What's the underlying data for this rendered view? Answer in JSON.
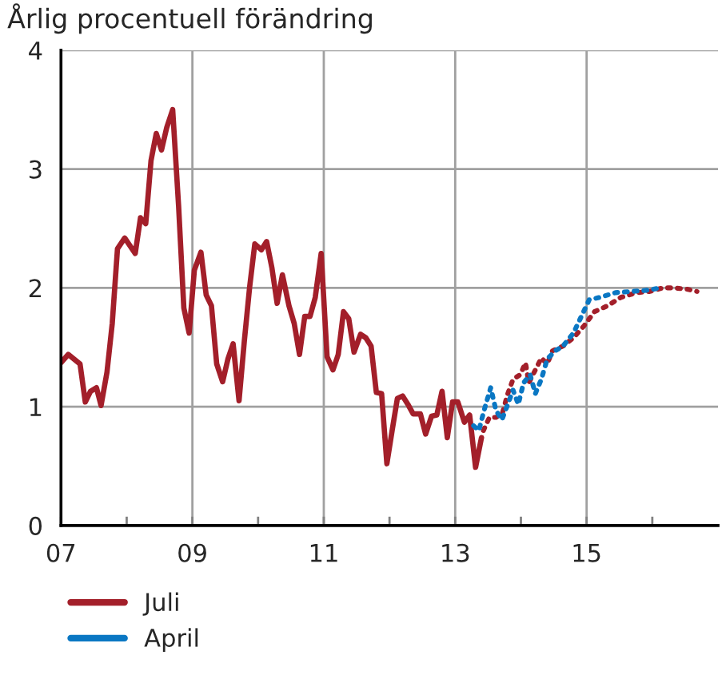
{
  "chart_data": {
    "type": "line",
    "title": "Årlig procentuell förändring",
    "xlim": [
      2007,
      2017
    ],
    "ylim": [
      0,
      4
    ],
    "yticks": [
      0,
      1,
      2,
      3,
      4
    ],
    "xticks": [
      {
        "value": 2007,
        "label": "07"
      },
      {
        "value": 2008,
        "label": null
      },
      {
        "value": 2009,
        "label": "09"
      },
      {
        "value": 2010,
        "label": null
      },
      {
        "value": 2011,
        "label": "11"
      },
      {
        "value": 2012,
        "label": null
      },
      {
        "value": 2013,
        "label": "13"
      },
      {
        "value": 2014,
        "label": null
      },
      {
        "value": 2015,
        "label": "15"
      },
      {
        "value": 2016,
        "label": null
      }
    ],
    "grid": true,
    "legend": "bottom",
    "marker": "none",
    "series": [
      {
        "name": "Juli",
        "color": "#a31f2a",
        "line_style": "solid",
        "x": [
          2007.0,
          2007.11,
          2007.29,
          2007.37,
          2007.45,
          2007.54,
          2007.61,
          2007.7,
          2007.78,
          2007.86,
          2007.97,
          2008.13,
          2008.21,
          2008.29,
          2008.37,
          2008.45,
          2008.53,
          2008.61,
          2008.7,
          2008.79,
          2008.87,
          2008.95,
          2009.03,
          2009.13,
          2009.21,
          2009.29,
          2009.37,
          2009.46,
          2009.54,
          2009.62,
          2009.71,
          2009.79,
          2009.87,
          2009.95,
          2010.05,
          2010.13,
          2010.21,
          2010.29,
          2010.37,
          2010.47,
          2010.55,
          2010.63,
          2010.71,
          2010.79,
          2010.87,
          2010.96,
          2011.05,
          2011.14,
          2011.22,
          2011.3,
          2011.38,
          2011.46,
          2011.56,
          2011.64,
          2011.72,
          2011.8,
          2011.88,
          2011.96,
          2012.04,
          2012.12,
          2012.2,
          2012.28,
          2012.36,
          2012.47,
          2012.55,
          2012.64,
          2012.72,
          2012.8,
          2012.88,
          2012.96,
          2013.04,
          2013.14,
          2013.22,
          2013.31,
          2013.4
        ],
        "values": [
          1.37,
          1.44,
          1.36,
          1.04,
          1.13,
          1.16,
          1.01,
          1.29,
          1.7,
          2.33,
          2.42,
          2.29,
          2.59,
          2.54,
          3.07,
          3.3,
          3.16,
          3.35,
          3.5,
          2.69,
          1.83,
          1.62,
          2.15,
          2.3,
          1.94,
          1.85,
          1.36,
          1.21,
          1.4,
          1.53,
          1.05,
          1.55,
          2.0,
          2.37,
          2.32,
          2.39,
          2.17,
          1.87,
          2.11,
          1.85,
          1.7,
          1.44,
          1.76,
          1.76,
          1.92,
          2.29,
          1.42,
          1.31,
          1.44,
          1.8,
          1.74,
          1.46,
          1.61,
          1.58,
          1.51,
          1.12,
          1.11,
          0.52,
          0.8,
          1.07,
          1.09,
          1.02,
          0.94,
          0.94,
          0.77,
          0.92,
          0.93,
          1.13,
          0.74,
          1.04,
          1.04,
          0.87,
          0.93,
          0.49,
          0.74
        ]
      },
      {
        "color": "#a31f2a",
        "line_style": "dotted",
        "x": [
          2013.43,
          2013.52,
          2013.62,
          2013.72,
          2013.8,
          2013.88,
          2013.99,
          2014.07,
          2014.12,
          2014.23,
          2014.31,
          2014.4,
          2014.48,
          2014.64,
          2014.8,
          2014.96,
          2015.12,
          2015.32,
          2015.52,
          2015.76,
          2015.96,
          2016.16,
          2016.32,
          2016.52,
          2016.68
        ],
        "values": [
          0.8,
          0.91,
          0.91,
          0.95,
          1.11,
          1.23,
          1.27,
          1.37,
          1.2,
          1.32,
          1.41,
          1.36,
          1.47,
          1.51,
          1.58,
          1.68,
          1.8,
          1.85,
          1.92,
          1.96,
          1.97,
          2.0,
          2.0,
          1.99,
          1.97
        ]
      },
      {
        "name": "April",
        "color": "#0a77c3",
        "line_style": "dotted",
        "x": [
          2013.28,
          2013.36,
          2013.44,
          2013.54,
          2013.62,
          2013.71,
          2013.8,
          2013.88,
          2013.96,
          2014.04,
          2014.14,
          2014.22,
          2014.31,
          2014.4,
          2014.52,
          2014.64,
          2014.8,
          2014.92,
          2015.04,
          2015.2,
          2015.44,
          2015.68,
          2015.92,
          2016.12
        ],
        "values": [
          0.84,
          0.8,
          0.97,
          1.16,
          0.97,
          0.89,
          1.02,
          1.14,
          1.02,
          1.2,
          1.27,
          1.11,
          1.23,
          1.4,
          1.47,
          1.51,
          1.62,
          1.76,
          1.9,
          1.92,
          1.96,
          1.97,
          1.98,
          2.0
        ]
      }
    ]
  }
}
